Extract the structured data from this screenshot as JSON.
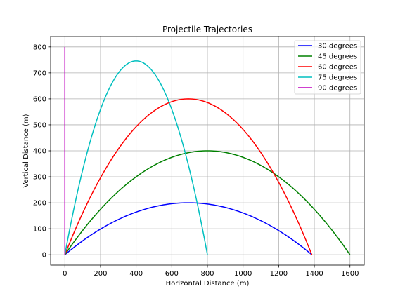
{
  "chart_data": {
    "type": "line",
    "title": "Projectile Trajectories",
    "xlabel": "Horizontal Distance (m)",
    "ylabel": "Vertical Distance (m)",
    "xlim": [
      -80,
      1680
    ],
    "ylim": [
      -40,
      840
    ],
    "xticks": [
      0,
      200,
      400,
      600,
      800,
      1000,
      1200,
      1400,
      1600
    ],
    "yticks": [
      0,
      100,
      200,
      300,
      400,
      500,
      600,
      700,
      800
    ],
    "grid": true,
    "legend_position": "top-right",
    "series": [
      {
        "name": "30 degrees",
        "color": "#0000ff",
        "range": 1386,
        "max_height": 200
      },
      {
        "name": "45 degrees",
        "color": "#008000",
        "range": 1600,
        "max_height": 400
      },
      {
        "name": "60 degrees",
        "color": "#ff0000",
        "range": 1386,
        "max_height": 600
      },
      {
        "name": "75 degrees",
        "color": "#00bfbf",
        "range": 800,
        "max_height": 746
      },
      {
        "name": "90 degrees",
        "color": "#bf00bf",
        "range": 0,
        "max_height": 800
      }
    ]
  }
}
